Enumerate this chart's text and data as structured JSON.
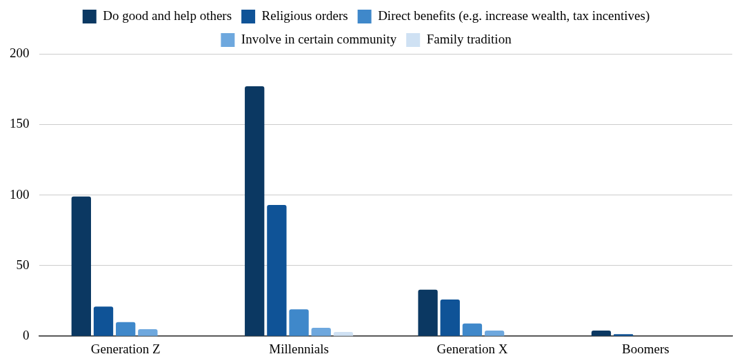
{
  "chart_data": {
    "type": "bar",
    "categories": [
      "Generation Z",
      "Millennials",
      "Generation X",
      "Boomers"
    ],
    "series": [
      {
        "name": "Do good and help others",
        "color": "#0b3862",
        "values": [
          99,
          177,
          33,
          4
        ]
      },
      {
        "name": "Religious orders",
        "color": "#0f5397",
        "values": [
          21,
          93,
          26,
          1.5
        ]
      },
      {
        "name": "Direct benefits (e.g. increase wealth, tax incentives)",
        "color": "#3f88ca",
        "values": [
          10,
          19,
          9,
          0
        ]
      },
      {
        "name": "Involve in certain community",
        "color": "#6ea8de",
        "values": [
          5,
          6,
          4,
          null
        ]
      },
      {
        "name": "Family tradition",
        "color": "#cfe1f3",
        "values": [
          null,
          3,
          null,
          0
        ]
      }
    ],
    "ylim": [
      0,
      200
    ],
    "yticks": [
      0,
      50,
      100,
      150,
      200
    ],
    "grid": "y",
    "legend": "top"
  }
}
